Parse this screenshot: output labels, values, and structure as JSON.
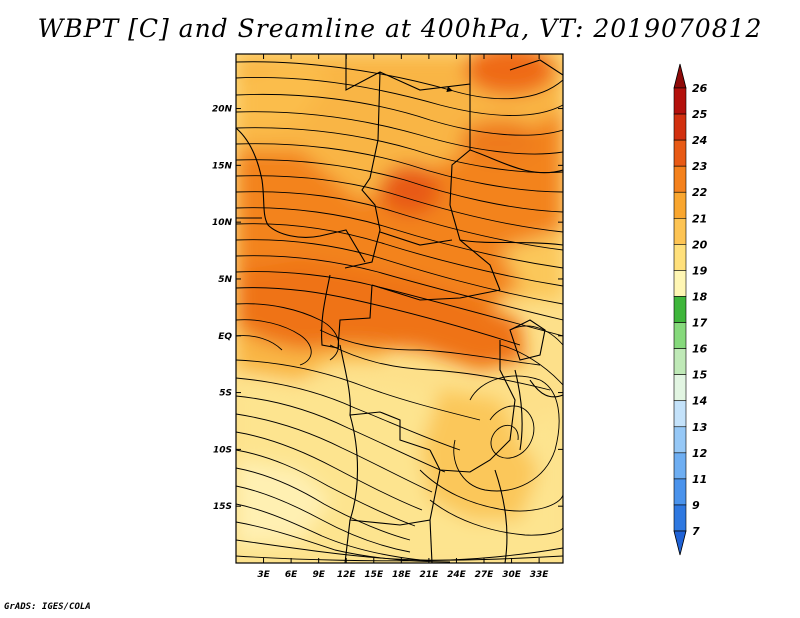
{
  "title": "WBPT [C] and Sreamline at 400hPa, VT: 2019070812",
  "footer": "GrADS: IGES/COLA",
  "map": {
    "variable": "Wet-bulb potential temperature",
    "level": "400hPa",
    "valid_time": "2019070812",
    "lat_labels": [
      "20N",
      "15N",
      "10N",
      "5N",
      "EQ",
      "5S",
      "10S",
      "15S"
    ],
    "lon_labels": [
      "3E",
      "6E",
      "9E",
      "12E",
      "15E",
      "18E",
      "21E",
      "24E",
      "27E",
      "30E",
      "33E"
    ],
    "lat_values": [
      20,
      15,
      10,
      5,
      0,
      -5,
      -10,
      -15
    ],
    "lon_values": [
      3,
      6,
      9,
      12,
      15,
      18,
      21,
      24,
      27,
      30,
      33
    ],
    "lat_range": [
      -20,
      24.8
    ],
    "lon_range": [
      0,
      35.6
    ]
  },
  "colorbar": {
    "labels": [
      "7",
      "9",
      "11",
      "12",
      "13",
      "14",
      "15",
      "16",
      "17",
      "18",
      "19",
      "20",
      "21",
      "22",
      "23",
      "24",
      "25",
      "26"
    ],
    "colors": [
      "#1f62d6",
      "#2f78e0",
      "#4a93ec",
      "#6eaef2",
      "#96c8f6",
      "#c4e2fa",
      "#e2f5e2",
      "#bfe9b7",
      "#86d97c",
      "#3fb63b",
      "#fff6b4",
      "#ffe07c",
      "#fdc454",
      "#f9a62f",
      "#f4811d",
      "#e85a15",
      "#d2300f",
      "#b3100c",
      "#8e0a08"
    ]
  }
}
